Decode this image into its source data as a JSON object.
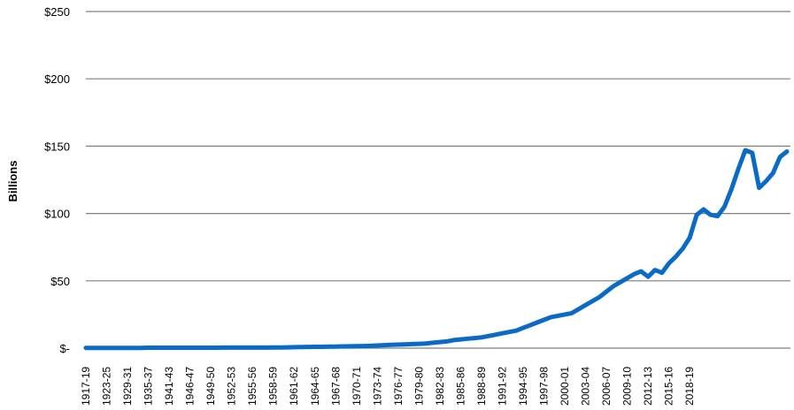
{
  "chart_data": {
    "type": "line",
    "title": "",
    "xlabel": "",
    "ylabel": "Billions",
    "ylim": [
      0,
      250
    ],
    "grid": true,
    "legend": null,
    "y_ticks": [
      {
        "value": 0,
        "label": "$-"
      },
      {
        "value": 50,
        "label": "$50"
      },
      {
        "value": 100,
        "label": "$100"
      },
      {
        "value": 150,
        "label": "$150"
      },
      {
        "value": 200,
        "label": "$200"
      },
      {
        "value": 250,
        "label": "$250"
      }
    ],
    "x_tick_labels": [
      "1917-19",
      "1923-25",
      "1929-31",
      "1935-37",
      "1941-43",
      "1946-47",
      "1949-50",
      "1952-53",
      "1955-56",
      "1958-59",
      "1961-62",
      "1964-65",
      "1967-68",
      "1970-71",
      "1973-74",
      "1976-77",
      "1979-80",
      "1982-83",
      "1985-86",
      "1988-89",
      "1991-92",
      "1994-95",
      "1997-98",
      "2000-01",
      "2003-04",
      "2006-07",
      "2009-10",
      "2012-13",
      "2015-16",
      "2018-19"
    ],
    "series": [
      {
        "name": "Billions",
        "color": "#0a6ac5",
        "values": [
          0.2,
          0.2,
          0.2,
          0.2,
          0.2,
          0.2,
          0.2,
          0.2,
          0.2,
          0.3,
          0.3,
          0.3,
          0.3,
          0.3,
          0.3,
          0.3,
          0.3,
          0.3,
          0.3,
          0.3,
          0.4,
          0.4,
          0.4,
          0.4,
          0.4,
          0.4,
          0.4,
          0.5,
          0.5,
          0.6,
          0.7,
          0.8,
          0.9,
          1.0,
          1.0,
          1.1,
          1.2,
          1.3,
          1.4,
          1.5,
          1.6,
          1.7,
          2.0,
          2.2,
          2.4,
          2.6,
          2.8,
          3.0,
          3.2,
          3.5,
          4.0,
          4.5,
          5,
          6,
          6.5,
          7,
          7.5,
          8,
          9,
          10,
          11,
          12,
          13,
          15,
          17,
          19,
          21,
          23,
          24,
          25,
          26,
          29,
          32,
          35,
          38,
          42,
          46,
          49,
          52,
          55,
          57,
          53,
          58,
          56,
          63,
          68,
          74,
          82,
          99,
          103,
          99,
          98,
          105,
          118,
          133,
          147,
          145,
          119,
          124,
          130,
          142,
          146
        ]
      }
    ]
  }
}
